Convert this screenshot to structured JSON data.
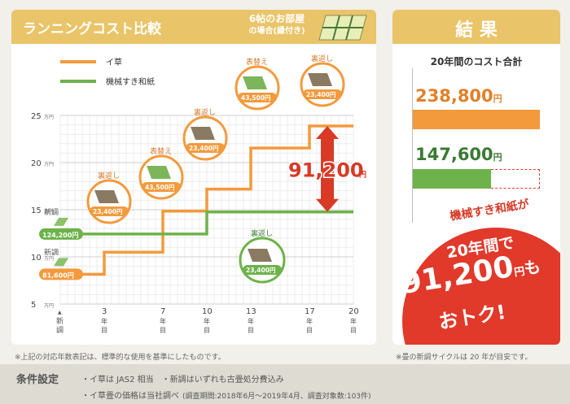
{
  "header": {
    "title": "ランニングコスト比較",
    "room_line1": "6帖のお部屋",
    "room_line2": "の場合(縁付き)"
  },
  "legend": [
    {
      "label": "イ草",
      "color": "#f39a3c"
    },
    {
      "label": "機械すき和紙",
      "color": "#6db24a"
    }
  ],
  "chart_data": {
    "type": "line",
    "x_ticks": [
      {
        "v": 0,
        "label": "新調"
      },
      {
        "v": 3,
        "label": "3年目"
      },
      {
        "v": 7,
        "label": "7年目"
      },
      {
        "v": 10,
        "label": "10年目"
      },
      {
        "v": 13,
        "label": "13年目"
      },
      {
        "v": 17,
        "label": "17年目"
      },
      {
        "v": 20,
        "label": "20年目"
      }
    ],
    "y_ticks": [
      {
        "v": 5,
        "label": "5",
        "unit": "万円"
      },
      {
        "v": 10,
        "label": "10",
        "unit": "万円"
      },
      {
        "v": 15,
        "label": "15",
        "unit": "万円"
      },
      {
        "v": 20,
        "label": "20",
        "unit": "万円"
      },
      {
        "v": 25,
        "label": "25",
        "unit": "万円"
      }
    ],
    "xlim": [
      0,
      20
    ],
    "ylim": [
      5,
      25
    ],
    "series": [
      {
        "name": "イ草",
        "color": "#f39a3c",
        "points": [
          [
            0,
            8.16
          ],
          [
            3,
            8.16
          ],
          [
            3,
            10.5
          ],
          [
            7,
            10.5
          ],
          [
            7,
            14.85
          ],
          [
            10,
            14.85
          ],
          [
            10,
            17.19
          ],
          [
            13,
            17.19
          ],
          [
            13,
            21.54
          ],
          [
            17,
            21.54
          ],
          [
            17,
            23.88
          ],
          [
            20,
            23.88
          ]
        ]
      },
      {
        "name": "機械すき和紙",
        "color": "#6db24a",
        "points": [
          [
            0,
            12.42
          ],
          [
            10,
            12.42
          ],
          [
            10,
            14.76
          ],
          [
            20,
            14.76
          ]
        ]
      }
    ],
    "events": [
      {
        "series": "イ草",
        "label": "新調",
        "price": "81,600円"
      },
      {
        "series": "イ草",
        "x": 3,
        "label": "裏返し",
        "price": "23,400円"
      },
      {
        "series": "イ草",
        "x": 7,
        "label": "表替え",
        "price": "43,500円"
      },
      {
        "series": "イ草",
        "x": 10,
        "label": "裏返し",
        "price": "23,400円"
      },
      {
        "series": "イ草",
        "x": 13,
        "label": "表替え",
        "price": "43,500円"
      },
      {
        "series": "イ草",
        "x": 17,
        "label": "裏返し",
        "price": "23,400円"
      },
      {
        "series": "機械すき和紙",
        "label": "新調",
        "price": "124,200円"
      },
      {
        "series": "機械すき和紙",
        "x": 10,
        "label": "裏返し",
        "price": "23,400円"
      }
    ],
    "difference": {
      "value": "91,200",
      "unit": "円"
    }
  },
  "result": {
    "title": "結 果",
    "subtitle": "20年間のコスト合計",
    "igusa_total": "238,800",
    "washi_total": "147,600",
    "unit": "円",
    "igusa_color": "#f39a3c",
    "washi_color": "#6db24a",
    "igusa_value": 238800,
    "washi_value": 147600,
    "claim_line1": "機械すき和紙が",
    "claim_line2": "20年間で",
    "claim_big": "91,200",
    "claim_yen": "円",
    "claim_mo": "も",
    "claim_line4": "おトク!"
  },
  "notes": {
    "left": "※上記の対応年数表記は、標準的な使用を基準にしたものです。",
    "right": "※畳の新調サイクルは 20 年が目安です。"
  },
  "conditions": {
    "title": "条件設定",
    "line1": "・イ草は JAS2 相当　・新調はいずれも古畳処分費込み",
    "line2a": "・イ草畳の価格は当社調べ",
    "line2b": "(調査期間:2018年6月〜2019年4月、調査対象数:103件)"
  }
}
